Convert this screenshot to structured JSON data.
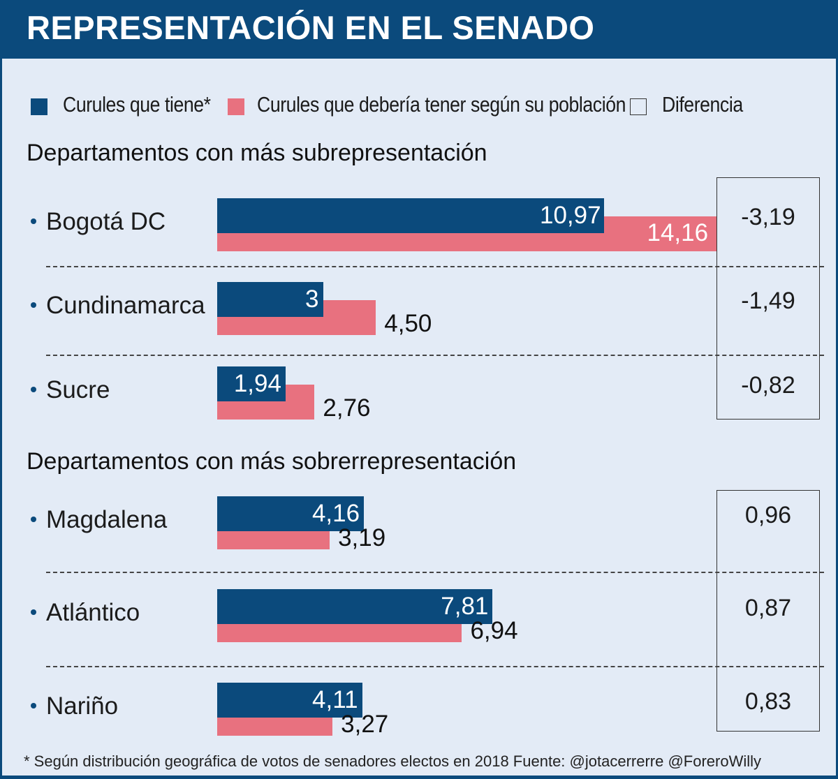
{
  "title": "REPRESENTACIÓN EN EL SENADO",
  "legend": [
    {
      "label": "Curules que tiene*",
      "color": "#0b4a7c"
    },
    {
      "label": "Curules que debería tener según su población",
      "color": "#e8717f"
    },
    {
      "label": "Diferencia",
      "color": "outline"
    }
  ],
  "chart_data": [
    {
      "type": "bar",
      "title": "Departamentos con más subrepresentación",
      "categories": [
        "Bogotá DC",
        "Cundinamarca",
        "Sucre"
      ],
      "series": [
        {
          "name": "Curules que tiene*",
          "values": [
            10.97,
            3,
            1.94
          ],
          "labels": [
            "10,97",
            "3",
            "1,94"
          ]
        },
        {
          "name": "Curules que debería tener según su población",
          "values": [
            14.16,
            4.5,
            2.76
          ],
          "labels": [
            "14,16",
            "4,50",
            "2,76"
          ]
        }
      ],
      "differences": [
        "-3,19",
        "-1,49",
        "-0,82"
      ]
    },
    {
      "type": "bar",
      "title": "Departamentos con más sobrerrepresentación",
      "categories": [
        "Magdalena",
        "Atlántico",
        "Nariño"
      ],
      "series": [
        {
          "name": "Curules que tiene*",
          "values": [
            4.16,
            7.81,
            4.11
          ],
          "labels": [
            "4,16",
            "7,81",
            "4,11"
          ]
        },
        {
          "name": "Curules que debería tener según su población",
          "values": [
            3.19,
            6.94,
            3.27
          ],
          "labels": [
            "3,19",
            "6,94",
            "3,27"
          ]
        }
      ],
      "differences": [
        "0,96",
        "0,87",
        "0,83"
      ]
    }
  ],
  "footnote": "* Según distribución geográfica de votos de senadores electos en 2018  Fuente: @jotacerrerre @ForeroWilly"
}
